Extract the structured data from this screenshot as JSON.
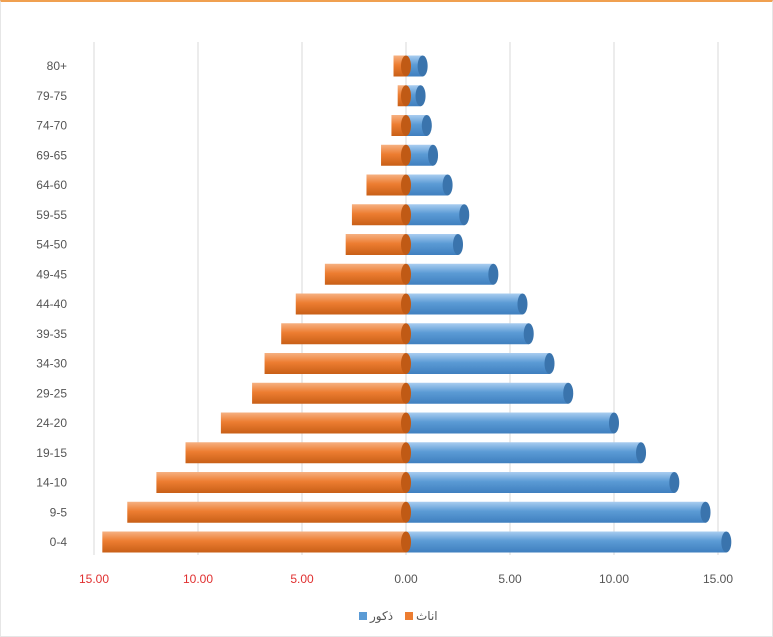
{
  "chart_data": {
    "type": "bar",
    "orientation": "horizontal",
    "categories": [
      "0-4",
      "9-5",
      "14-10",
      "19-15",
      "24-20",
      "29-25",
      "34-30",
      "39-35",
      "44-40",
      "49-45",
      "54-50",
      "59-55",
      "64-60",
      "69-65",
      "74-70",
      "79-75",
      "80+"
    ],
    "series": [
      {
        "name": "ذکور",
        "color": "#5b9bd5",
        "values": [
          15.4,
          14.4,
          12.9,
          11.3,
          10.0,
          7.8,
          6.9,
          5.9,
          5.6,
          4.2,
          2.5,
          2.8,
          2.0,
          1.3,
          1.0,
          0.7,
          0.8
        ]
      },
      {
        "name": "اناث",
        "color": "#ed7d31",
        "values": [
          14.6,
          13.4,
          12.0,
          10.6,
          8.9,
          7.4,
          6.8,
          6.0,
          5.3,
          3.9,
          2.9,
          2.6,
          1.9,
          1.2,
          0.7,
          0.4,
          0.6
        ]
      }
    ],
    "xlim": [
      -15,
      15
    ],
    "x_ticks": [
      -15,
      -10,
      -5,
      0,
      5,
      10,
      15
    ],
    "x_tick_labels": [
      "15.00",
      "10.00",
      "5.00",
      "0.00",
      "5.00",
      "10.00",
      "15.00"
    ],
    "negative_tick_color": "#e03030",
    "positive_tick_color": "#555555",
    "grid": true,
    "legend": "bottom",
    "title": "",
    "xlabel": "",
    "ylabel": ""
  }
}
